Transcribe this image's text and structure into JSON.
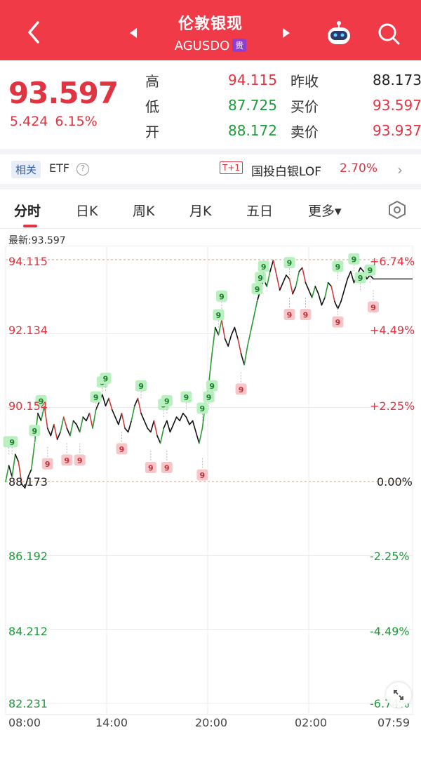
{
  "header": {
    "title": "伦敦银现",
    "symbol": "AGUSDO",
    "badge": "贵"
  },
  "quote": {
    "last": "93.597",
    "change": "5.424",
    "change_pct": "6.15%",
    "high_label": "高",
    "high": "94.115",
    "low_label": "低",
    "low": "87.725",
    "open_label": "开",
    "open": "88.172",
    "prev_close_label": "昨收",
    "prev_close": "88.173",
    "bid_label": "买价",
    "bid": "93.597",
    "ask_label": "卖价",
    "ask": "93.937"
  },
  "etf": {
    "related_label": "相关",
    "etf_label": "ETF",
    "t1_label": "T+1",
    "fund_name": "国投白银LOF",
    "fund_pct": "2.70%"
  },
  "tabs": [
    "分时",
    "日K",
    "周K",
    "月K",
    "五日",
    "更多▾"
  ],
  "chart": {
    "latest_label": "最新:93.597"
  },
  "chart_data": {
    "type": "line",
    "x_ticks": [
      "08:00",
      "14:00",
      "20:00",
      "02:00",
      "07:59"
    ],
    "y_ticks_left": [
      "94.115",
      "92.134",
      "90.154",
      "88.173",
      "86.192",
      "84.212",
      "82.231"
    ],
    "y_ticks_right": [
      "+6.74%",
      "+4.49%",
      "+2.25%",
      "0.00%",
      "-2.25%",
      "-4.49%",
      "-6.74%"
    ],
    "ylim": [
      82.231,
      94.115
    ],
    "reference_line": 88.173,
    "series": [
      {
        "values": [
          88.17,
          88.6,
          88.3,
          88.9,
          88.7,
          88.1,
          88.0,
          88.3,
          88.5,
          89.2,
          90.0,
          89.8,
          90.2,
          89.6,
          89.4,
          89.7,
          89.3,
          89.5,
          89.9,
          89.6,
          89.4,
          89.8,
          89.7,
          89.5,
          89.9,
          89.8,
          90.0,
          89.6,
          90.1,
          90.3,
          90.5,
          90.2,
          90.4,
          90.1,
          89.9,
          89.7,
          90.0,
          89.6,
          89.5,
          89.8,
          90.2,
          90.4,
          90.0,
          89.8,
          89.6,
          89.5,
          89.8,
          89.4,
          89.2,
          89.6,
          89.8,
          89.5,
          89.7,
          89.9,
          89.8,
          90.0,
          89.9,
          89.7,
          89.8,
          89.5,
          89.2,
          89.6,
          90.3,
          90.8,
          91.6,
          92.3,
          92.1,
          92.5,
          92.0,
          91.8,
          92.1,
          92.3,
          92.0,
          91.6,
          91.3,
          91.8,
          92.2,
          92.6,
          93.0,
          93.3,
          93.6,
          93.4,
          93.8,
          94.1,
          93.7,
          93.3,
          93.5,
          93.7,
          93.6,
          93.2,
          93.4,
          93.8,
          93.9,
          93.5,
          93.3,
          93.1,
          93.4,
          93.2,
          92.9,
          93.1,
          93.5,
          93.4,
          93.0,
          92.8,
          93.0,
          93.3,
          93.6,
          93.8,
          93.5,
          93.7,
          93.9,
          93.8,
          93.6,
          93.7,
          93.6
        ]
      }
    ],
    "markers_green": [
      {
        "i": 1,
        "v": 88.9
      },
      {
        "i": 2,
        "v": 88.9
      },
      {
        "i": 9,
        "v": 89.2
      },
      {
        "i": 11,
        "v": 90.0
      },
      {
        "i": 28,
        "v": 90.1
      },
      {
        "i": 30,
        "v": 90.5
      },
      {
        "i": 31,
        "v": 90.6
      },
      {
        "i": 42,
        "v": 90.4
      },
      {
        "i": 49,
        "v": 89.9
      },
      {
        "i": 50,
        "v": 90.0
      },
      {
        "i": 56,
        "v": 90.1
      },
      {
        "i": 61,
        "v": 89.8
      },
      {
        "i": 63,
        "v": 90.1
      },
      {
        "i": 64,
        "v": 90.4
      },
      {
        "i": 66,
        "v": 92.3
      },
      {
        "i": 67,
        "v": 92.8
      },
      {
        "i": 78,
        "v": 93.0
      },
      {
        "i": 79,
        "v": 93.3
      },
      {
        "i": 80,
        "v": 93.6
      },
      {
        "i": 88,
        "v": 93.7
      },
      {
        "i": 103,
        "v": 93.6
      },
      {
        "i": 108,
        "v": 93.8
      },
      {
        "i": 110,
        "v": 93.3
      },
      {
        "i": 113,
        "v": 93.5
      }
    ],
    "markers_red": [
      {
        "i": 13,
        "v": 89.1
      },
      {
        "i": 19,
        "v": 89.2
      },
      {
        "i": 23,
        "v": 89.2
      },
      {
        "i": 36,
        "v": 89.5
      },
      {
        "i": 45,
        "v": 89.0
      },
      {
        "i": 50,
        "v": 89.0
      },
      {
        "i": 61,
        "v": 88.8
      },
      {
        "i": 73,
        "v": 91.1
      },
      {
        "i": 88,
        "v": 93.1
      },
      {
        "i": 93,
        "v": 93.1
      },
      {
        "i": 103,
        "v": 92.9
      },
      {
        "i": 114,
        "v": 93.3
      }
    ]
  }
}
